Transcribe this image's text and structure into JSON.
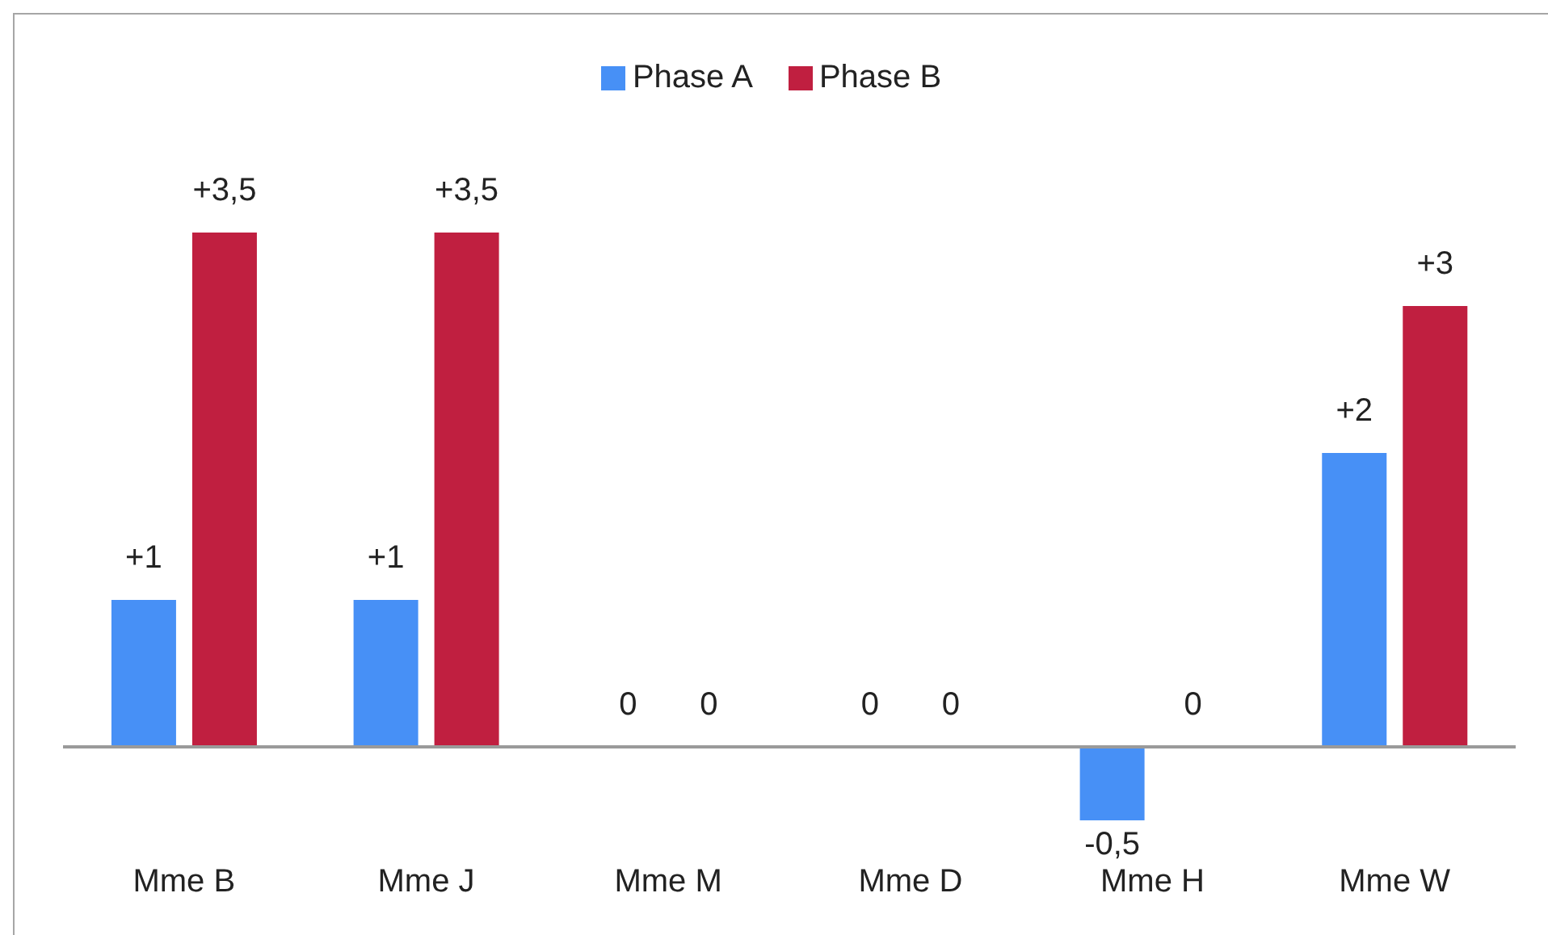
{
  "chart_data": {
    "type": "bar",
    "categories": [
      "Mme B",
      "Mme J",
      "Mme M",
      "Mme D",
      "Mme H",
      "Mme W"
    ],
    "series": [
      {
        "name": "Phase A",
        "color": "#4790f6",
        "values": [
          1,
          1,
          0,
          0,
          -0.5,
          2
        ],
        "value_labels": [
          "+1",
          "+1",
          "0",
          "0",
          "-0,5",
          "+2"
        ]
      },
      {
        "name": "Phase B",
        "color": "#c01f40",
        "values": [
          3.5,
          3.5,
          0,
          0,
          0,
          3
        ],
        "value_labels": [
          "+3,5",
          "+3,5",
          "0",
          "0",
          "0",
          "+3"
        ]
      }
    ],
    "legend": "top"
  }
}
